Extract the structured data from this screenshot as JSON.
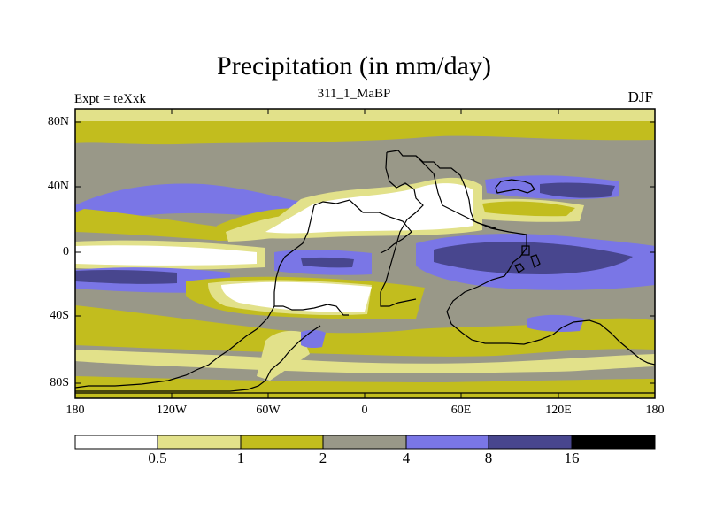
{
  "title": "Precipitation (in mm/day)",
  "subtitle": "311_1_MaBP",
  "left_label": "Expt = teXxk",
  "right_label": "DJF",
  "lat_ticks": [
    "80N",
    "40N",
    "0",
    "40S",
    "80S"
  ],
  "lon_ticks": [
    "180",
    "120W",
    "60W",
    "0",
    "60E",
    "120E",
    "180"
  ],
  "colorbar": {
    "levels": [
      "0.5",
      "1",
      "2",
      "4",
      "8",
      "16"
    ],
    "colors": [
      "#ffffff",
      "#e2e18a",
      "#c2bd1e",
      "#999888",
      "#7a76e6",
      "#48468e",
      "#000000"
    ]
  },
  "colors": {
    "lt0_5": "#ffffff",
    "c0_5_1": "#e2e18a",
    "c1_2": "#c2bd1e",
    "c2_4": "#999888",
    "c4_8": "#7a76e6",
    "c8_16": "#48468e"
  }
}
